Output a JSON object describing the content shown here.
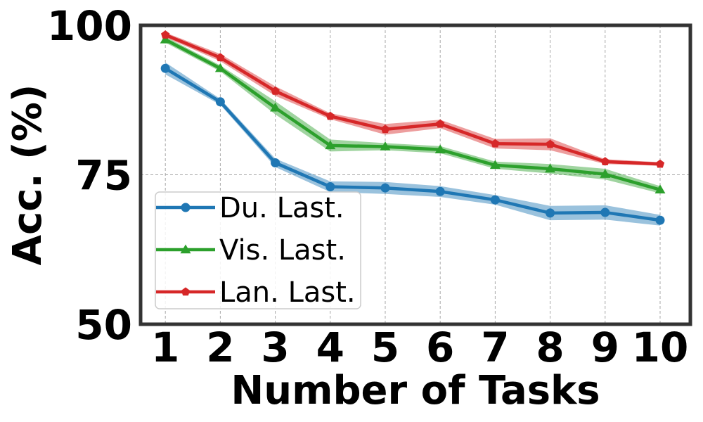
{
  "chart_data": {
    "type": "line",
    "xlabel": "Number of Tasks",
    "ylabel": "Acc. (%)",
    "x": [
      1,
      2,
      3,
      4,
      5,
      6,
      7,
      8,
      9,
      10
    ],
    "xlim": [
      0.55,
      10.55
    ],
    "ylim": [
      50,
      100
    ],
    "yticks": [
      50,
      75,
      100
    ],
    "grid": true,
    "legend_position": "lower-left",
    "series": [
      {
        "name": "Du. Last.",
        "color": "#1f77b4",
        "marker": "circle",
        "values": [
          92.8,
          87.2,
          77.0,
          73.0,
          72.8,
          72.2,
          70.8,
          68.6,
          68.7,
          67.4
        ],
        "band": [
          1.0,
          0.5,
          0.7,
          0.9,
          1.0,
          0.9,
          0.8,
          1.2,
          1.2,
          0.9
        ]
      },
      {
        "name": "Vis. Last.",
        "color": "#2ca02c",
        "marker": "triangle",
        "values": [
          97.6,
          92.8,
          86.2,
          79.9,
          79.7,
          79.2,
          76.6,
          76.0,
          75.1,
          72.5
        ],
        "band": [
          0.5,
          0.5,
          1.1,
          1.0,
          0.6,
          0.6,
          0.6,
          0.8,
          0.9,
          0.6
        ]
      },
      {
        "name": "Lan. Last.",
        "color": "#d62728",
        "marker": "pentagon",
        "values": [
          98.4,
          94.6,
          89.0,
          84.8,
          82.6,
          83.5,
          80.2,
          80.1,
          77.2,
          76.8
        ],
        "band": [
          0.4,
          0.6,
          0.8,
          0.5,
          0.9,
          0.7,
          0.8,
          1.0,
          0.4,
          0.3
        ]
      }
    ]
  }
}
